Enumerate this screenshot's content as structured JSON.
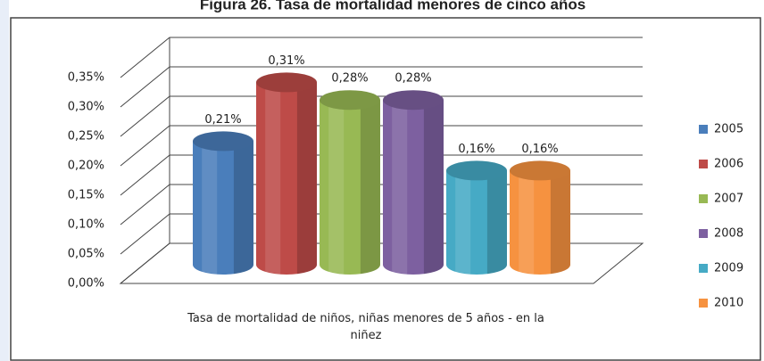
{
  "chart_data": {
    "type": "bar3d",
    "title": "Figura 26. Tasa de mortalidad menores de cinco años",
    "categories": [
      "Tasa de mortalidad de niños, niñas menores de 5 años - en la niñez"
    ],
    "series": [
      {
        "name": "2005",
        "color": "#4a7ebb",
        "values": [
          0.21
        ],
        "value_labels": [
          "0,21%"
        ]
      },
      {
        "name": "2006",
        "color": "#be4b48",
        "values": [
          0.31
        ],
        "value_labels": [
          "0,31%"
        ]
      },
      {
        "name": "2007",
        "color": "#98b954",
        "values": [
          0.28
        ],
        "value_labels": [
          "0,28%"
        ]
      },
      {
        "name": "2008",
        "color": "#7d60a0",
        "values": [
          0.28
        ],
        "value_labels": [
          "0,28%"
        ]
      },
      {
        "name": "2009",
        "color": "#46aac5",
        "values": [
          0.16
        ],
        "value_labels": [
          "0,16%"
        ]
      },
      {
        "name": "2010",
        "color": "#f69240",
        "values": [
          0.16
        ],
        "value_labels": [
          "0,16%"
        ]
      }
    ],
    "ylim": [
      0,
      0.35
    ],
    "yticks": [
      {
        "value": 0,
        "label": "0,00%"
      },
      {
        "value": 0.05,
        "label": "0,05%"
      },
      {
        "value": 0.1,
        "label": "0,10%"
      },
      {
        "value": 0.15,
        "label": "0,15%"
      },
      {
        "value": 0.2,
        "label": "0,20%"
      },
      {
        "value": 0.25,
        "label": "0,25%"
      },
      {
        "value": 0.3,
        "label": "0,30%"
      },
      {
        "value": 0.35,
        "label": "0,35%"
      }
    ],
    "grid": true,
    "legend": "right"
  }
}
